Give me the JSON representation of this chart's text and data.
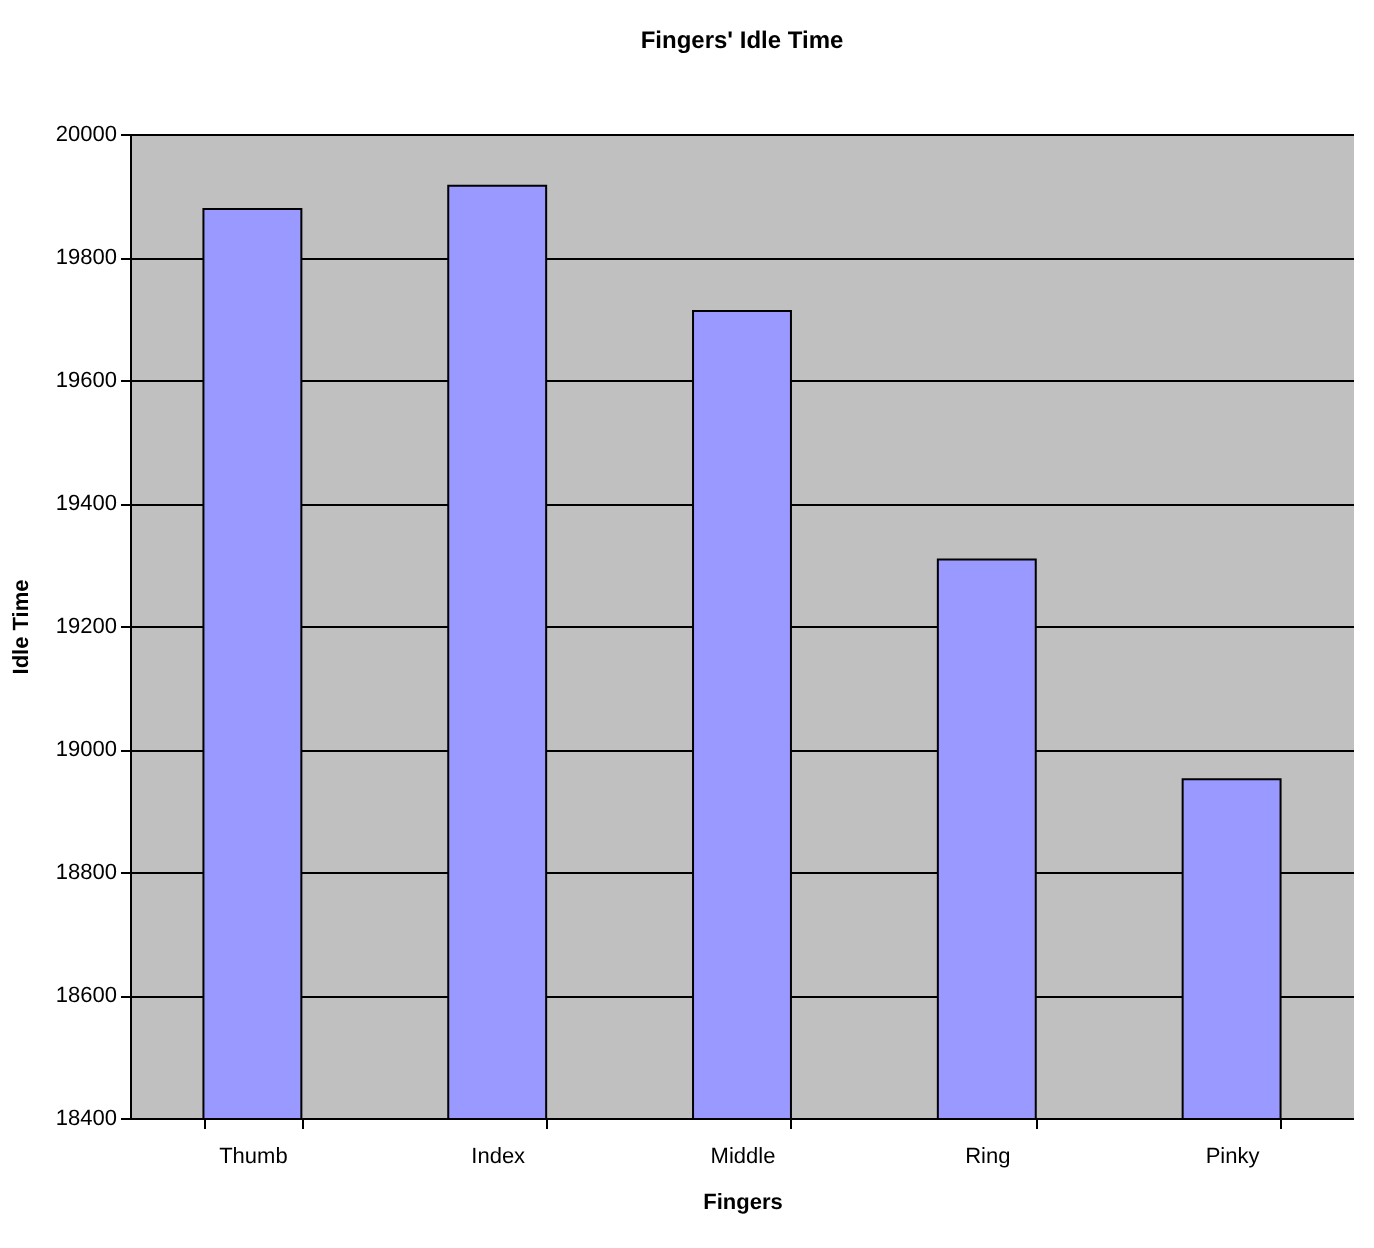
{
  "chart_data": {
    "type": "bar",
    "title": "Fingers' Idle Time",
    "xlabel": "Fingers",
    "ylabel": "Idle Time",
    "categories": [
      "Thumb",
      "Index",
      "Middle",
      "Ring",
      "Pinky"
    ],
    "values": [
      19878,
      19916,
      19712,
      19308,
      18951
    ],
    "color": "#9999ff",
    "ylim": [
      18400,
      20000
    ],
    "yticks": [
      18400,
      18600,
      18800,
      19000,
      19200,
      19400,
      19600,
      19800,
      20000
    ],
    "grid": "y"
  }
}
